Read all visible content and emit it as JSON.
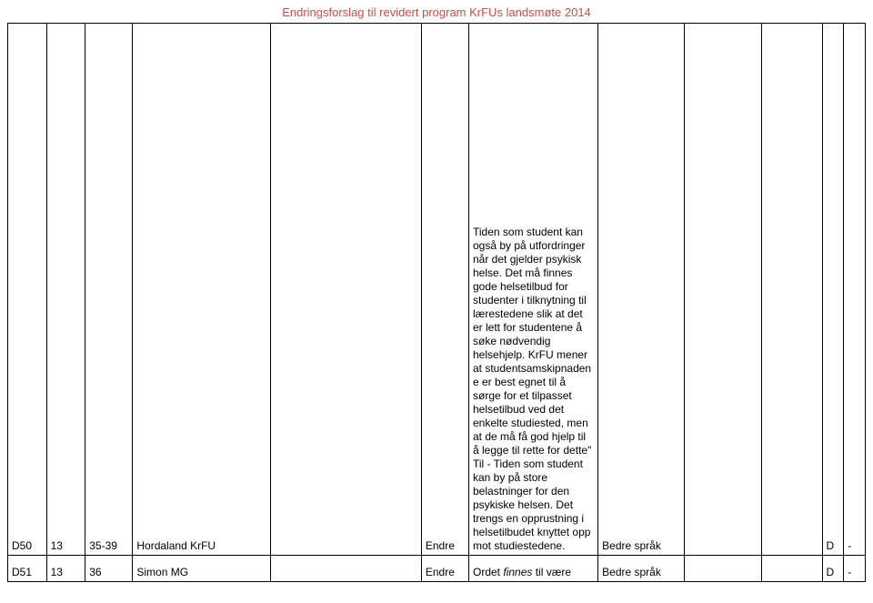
{
  "header": {
    "title": "Endringsforslag til revidert program KrFUs landsmøte 2014",
    "color": "#c0504d"
  },
  "rows": [
    {
      "id": "D50",
      "c1": "D50",
      "c2": "13",
      "c3": "35-39",
      "c4": "Hordaland KrFU",
      "c5": "",
      "c6": "Endre",
      "c7": " Tiden som student kan også by på utfordringer når det gjelder psykisk helse. Det må finnes gode helsetilbud for studenter i tilknytning til lærestedene slik at det er lett for studentene å søke nødvendig helsehjelp. KrFU mener at studentsamskipnaden e er best egnet til å sørge for et tilpasset helsetilbud ved det enkelte studiested, men at de må få god hjelp til å legge til rette for dette\" Til - Tiden som student kan by på store belastninger for den psykiske helsen. Det trengs en opprustning i helsetilbudet knyttet opp mot studiestedene.",
      "c8": "Bedre språk",
      "c9": "",
      "c10": "",
      "c11": "D",
      "c12": "-"
    },
    {
      "id": "D51",
      "c1": "D51",
      "c2": "13",
      "c3": "36",
      "c4": "Simon MG",
      "c5": "",
      "c6": "Endre",
      "c7_prefix": "Ordet ",
      "c7_italic": "finnes",
      "c7_suffix": " til være",
      "c8": "Bedre språk",
      "c9": "",
      "c10": "",
      "c11": "D",
      "c12": "-"
    }
  ]
}
